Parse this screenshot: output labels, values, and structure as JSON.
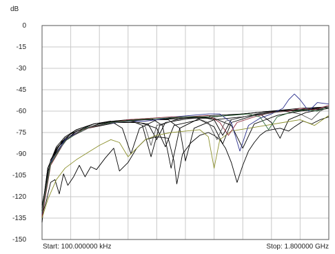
{
  "chart_data": {
    "type": "line",
    "ylabel": "dB",
    "yticks": [
      "0",
      "-15",
      "-30",
      "-45",
      "-60",
      "-75",
      "-90",
      "-105",
      "-120",
      "-135",
      "-150"
    ],
    "ylim": [
      -150,
      0
    ],
    "xlim": [
      0,
      1
    ],
    "x_grid_divisions": 10,
    "start_label": "Start: 100.000000 kHz",
    "stop_label": "Stop: 1.800000 GHz",
    "grid": true,
    "series": [
      {
        "color": "#000000",
        "points": [
          [
            0,
            -138
          ],
          [
            0.02,
            -100
          ],
          [
            0.05,
            -85
          ],
          [
            0.08,
            -78
          ],
          [
            0.12,
            -73
          ],
          [
            0.18,
            -69
          ],
          [
            0.25,
            -67
          ],
          [
            0.32,
            -66
          ],
          [
            0.4,
            -66
          ],
          [
            0.5,
            -65
          ],
          [
            0.6,
            -64
          ],
          [
            0.7,
            -62
          ],
          [
            0.8,
            -60
          ],
          [
            0.9,
            -58
          ],
          [
            1,
            -57
          ]
        ]
      },
      {
        "color": "#000000",
        "points": [
          [
            0,
            -135
          ],
          [
            0.02,
            -102
          ],
          [
            0.05,
            -87
          ],
          [
            0.08,
            -79
          ],
          [
            0.12,
            -73
          ],
          [
            0.18,
            -69
          ],
          [
            0.24,
            -67
          ],
          [
            0.28,
            -72
          ],
          [
            0.31,
            -90
          ],
          [
            0.34,
            -72
          ],
          [
            0.4,
            -66
          ],
          [
            0.5,
            -64
          ],
          [
            0.6,
            -63
          ],
          [
            0.7,
            -62
          ],
          [
            0.8,
            -60
          ],
          [
            0.9,
            -59
          ],
          [
            1,
            -57
          ]
        ]
      },
      {
        "color": "#000000",
        "points": [
          [
            0,
            -130
          ],
          [
            0.02,
            -100
          ],
          [
            0.05,
            -86
          ],
          [
            0.1,
            -76
          ],
          [
            0.18,
            -69
          ],
          [
            0.25,
            -67
          ],
          [
            0.3,
            -66
          ],
          [
            0.35,
            -70
          ],
          [
            0.38,
            -92
          ],
          [
            0.41,
            -70
          ],
          [
            0.48,
            -65
          ],
          [
            0.55,
            -64
          ],
          [
            0.6,
            -66
          ],
          [
            0.63,
            -77
          ],
          [
            0.66,
            -66
          ],
          [
            0.75,
            -62
          ],
          [
            0.85,
            -60
          ],
          [
            1,
            -57
          ]
        ]
      },
      {
        "color": "#000000",
        "points": [
          [
            0,
            -132
          ],
          [
            0.03,
            -96
          ],
          [
            0.07,
            -83
          ],
          [
            0.12,
            -74
          ],
          [
            0.2,
            -69
          ],
          [
            0.3,
            -66
          ],
          [
            0.38,
            -65
          ],
          [
            0.42,
            -70
          ],
          [
            0.45,
            -100
          ],
          [
            0.48,
            -72
          ],
          [
            0.55,
            -65
          ],
          [
            0.65,
            -63
          ],
          [
            0.75,
            -61
          ],
          [
            0.85,
            -60
          ],
          [
            1,
            -58
          ]
        ]
      },
      {
        "color": "#000000",
        "points": [
          [
            0,
            -128
          ],
          [
            0.03,
            -94
          ],
          [
            0.07,
            -81
          ],
          [
            0.14,
            -73
          ],
          [
            0.22,
            -69
          ],
          [
            0.3,
            -67
          ],
          [
            0.37,
            -69
          ],
          [
            0.4,
            -80
          ],
          [
            0.43,
            -68
          ],
          [
            0.52,
            -65
          ],
          [
            0.6,
            -65
          ],
          [
            0.66,
            -70
          ],
          [
            0.7,
            -86
          ],
          [
            0.74,
            -69
          ],
          [
            0.82,
            -63
          ],
          [
            0.9,
            -60
          ],
          [
            1,
            -58
          ]
        ]
      },
      {
        "color": "#000000",
        "points": [
          [
            0,
            -130
          ],
          [
            0.02,
            -100
          ],
          [
            0.06,
            -84
          ],
          [
            0.12,
            -74
          ],
          [
            0.2,
            -69
          ],
          [
            0.28,
            -67
          ],
          [
            0.36,
            -66
          ],
          [
            0.44,
            -66
          ],
          [
            0.48,
            -72
          ],
          [
            0.5,
            -95
          ],
          [
            0.53,
            -72
          ],
          [
            0.6,
            -66
          ],
          [
            0.7,
            -64
          ],
          [
            0.76,
            -62
          ],
          [
            0.8,
            -68
          ],
          [
            0.83,
            -79
          ],
          [
            0.86,
            -66
          ],
          [
            0.92,
            -61
          ],
          [
            1,
            -58
          ]
        ]
      },
      {
        "color": "#000000",
        "points": [
          [
            0,
            -126
          ],
          [
            0.03,
            -95
          ],
          [
            0.08,
            -80
          ],
          [
            0.16,
            -72
          ],
          [
            0.26,
            -68
          ],
          [
            0.34,
            -68
          ],
          [
            0.4,
            -72
          ],
          [
            0.43,
            -85
          ],
          [
            0.46,
            -70
          ],
          [
            0.55,
            -66
          ],
          [
            0.6,
            -71
          ],
          [
            0.63,
            -83
          ],
          [
            0.66,
            -68
          ],
          [
            0.74,
            -63
          ],
          [
            0.84,
            -60
          ],
          [
            0.92,
            -59
          ],
          [
            1,
            -57
          ]
        ]
      },
      {
        "color": "#000000",
        "points": [
          [
            0,
            -133
          ],
          [
            0.015,
            -123
          ],
          [
            0.03,
            -110
          ],
          [
            0.045,
            -108
          ],
          [
            0.06,
            -118
          ],
          [
            0.075,
            -104
          ],
          [
            0.09,
            -112
          ],
          [
            0.11,
            -106
          ],
          [
            0.13,
            -98
          ],
          [
            0.15,
            -106
          ],
          [
            0.17,
            -99
          ],
          [
            0.19,
            -101
          ],
          [
            0.22,
            -93
          ],
          [
            0.25,
            -86
          ],
          [
            0.27,
            -102
          ],
          [
            0.3,
            -96
          ],
          [
            0.33,
            -86
          ],
          [
            0.36,
            -80
          ],
          [
            0.4,
            -78
          ],
          [
            0.44,
            -79
          ],
          [
            0.46,
            -95
          ],
          [
            0.47,
            -111
          ],
          [
            0.49,
            -90
          ],
          [
            0.52,
            -82
          ],
          [
            0.55,
            -77
          ],
          [
            0.58,
            -75
          ],
          [
            0.6,
            -77
          ],
          [
            0.62,
            -80
          ],
          [
            0.64,
            -86
          ],
          [
            0.66,
            -96
          ],
          [
            0.68,
            -110
          ],
          [
            0.7,
            -98
          ],
          [
            0.72,
            -88
          ],
          [
            0.74,
            -82
          ],
          [
            0.76,
            -77
          ],
          [
            0.78,
            -74
          ],
          [
            0.8,
            -73
          ],
          [
            0.83,
            -72
          ],
          [
            0.86,
            -74
          ],
          [
            0.88,
            -71
          ],
          [
            0.91,
            -67
          ],
          [
            0.94,
            -69
          ],
          [
            0.97,
            -66
          ],
          [
            1,
            -64
          ]
        ]
      },
      {
        "color": "#8b8f2b",
        "points": [
          [
            0,
            -135
          ],
          [
            0.02,
            -122
          ],
          [
            0.05,
            -108
          ],
          [
            0.08,
            -100
          ],
          [
            0.12,
            -94
          ],
          [
            0.16,
            -89
          ],
          [
            0.2,
            -84
          ],
          [
            0.24,
            -80
          ],
          [
            0.27,
            -82
          ],
          [
            0.3,
            -92
          ],
          [
            0.33,
            -86
          ],
          [
            0.36,
            -80
          ],
          [
            0.4,
            -77
          ],
          [
            0.45,
            -75
          ],
          [
            0.5,
            -74
          ],
          [
            0.55,
            -73
          ],
          [
            0.58,
            -78
          ],
          [
            0.6,
            -100
          ],
          [
            0.62,
            -80
          ],
          [
            0.66,
            -74
          ],
          [
            0.72,
            -72
          ],
          [
            0.78,
            -70
          ],
          [
            0.84,
            -68
          ],
          [
            0.9,
            -66
          ],
          [
            0.95,
            -70
          ],
          [
            1,
            -63
          ]
        ]
      },
      {
        "color": "#2a2f8c",
        "points": [
          [
            0,
            -132
          ],
          [
            0.03,
            -96
          ],
          [
            0.08,
            -80
          ],
          [
            0.15,
            -72
          ],
          [
            0.22,
            -69
          ],
          [
            0.3,
            -67
          ],
          [
            0.36,
            -67
          ],
          [
            0.4,
            -66
          ],
          [
            0.46,
            -64
          ],
          [
            0.52,
            -63
          ],
          [
            0.58,
            -62
          ],
          [
            0.62,
            -62
          ],
          [
            0.66,
            -68
          ],
          [
            0.69,
            -88
          ],
          [
            0.72,
            -70
          ],
          [
            0.76,
            -65
          ],
          [
            0.8,
            -62
          ],
          [
            0.84,
            -58
          ],
          [
            0.86,
            -52
          ],
          [
            0.88,
            -48
          ],
          [
            0.9,
            -52
          ],
          [
            0.93,
            -60
          ],
          [
            0.96,
            -54
          ],
          [
            1,
            -55
          ]
        ]
      },
      {
        "color": "#8c2a3c",
        "points": [
          [
            0,
            -134
          ],
          [
            0.03,
            -98
          ],
          [
            0.08,
            -81
          ],
          [
            0.14,
            -73
          ],
          [
            0.22,
            -69
          ],
          [
            0.3,
            -66
          ],
          [
            0.38,
            -65
          ],
          [
            0.45,
            -64
          ],
          [
            0.52,
            -64
          ],
          [
            0.58,
            -63
          ],
          [
            0.62,
            -68
          ],
          [
            0.65,
            -77
          ],
          [
            0.68,
            -68
          ],
          [
            0.74,
            -64
          ],
          [
            0.8,
            -61
          ],
          [
            0.86,
            -60
          ],
          [
            0.9,
            -58
          ],
          [
            0.95,
            -59
          ],
          [
            1,
            -56
          ]
        ]
      },
      {
        "color": "#2f6b3a",
        "points": [
          [
            0,
            -131
          ],
          [
            0.03,
            -97
          ],
          [
            0.08,
            -81
          ],
          [
            0.15,
            -72
          ],
          [
            0.24,
            -68
          ],
          [
            0.33,
            -66
          ],
          [
            0.42,
            -65
          ],
          [
            0.5,
            -64
          ],
          [
            0.58,
            -64
          ],
          [
            0.66,
            -63
          ],
          [
            0.72,
            -62
          ],
          [
            0.76,
            -64
          ],
          [
            0.79,
            -73
          ],
          [
            0.82,
            -64
          ],
          [
            0.88,
            -60
          ],
          [
            0.92,
            -59
          ],
          [
            0.96,
            -60
          ],
          [
            1,
            -57
          ]
        ]
      },
      {
        "color": "#555555",
        "points": [
          [
            0,
            -129
          ],
          [
            0.03,
            -95
          ],
          [
            0.09,
            -79
          ],
          [
            0.17,
            -71
          ],
          [
            0.25,
            -68
          ],
          [
            0.32,
            -67
          ],
          [
            0.36,
            -71
          ],
          [
            0.38,
            -84
          ],
          [
            0.4,
            -70
          ],
          [
            0.47,
            -66
          ],
          [
            0.54,
            -65
          ],
          [
            0.58,
            -68
          ],
          [
            0.61,
            -80
          ],
          [
            0.64,
            -67
          ],
          [
            0.7,
            -64
          ],
          [
            0.78,
            -62
          ],
          [
            0.84,
            -60
          ],
          [
            0.9,
            -62
          ],
          [
            0.94,
            -66
          ],
          [
            0.97,
            -60
          ],
          [
            1,
            -57
          ]
        ]
      }
    ]
  }
}
